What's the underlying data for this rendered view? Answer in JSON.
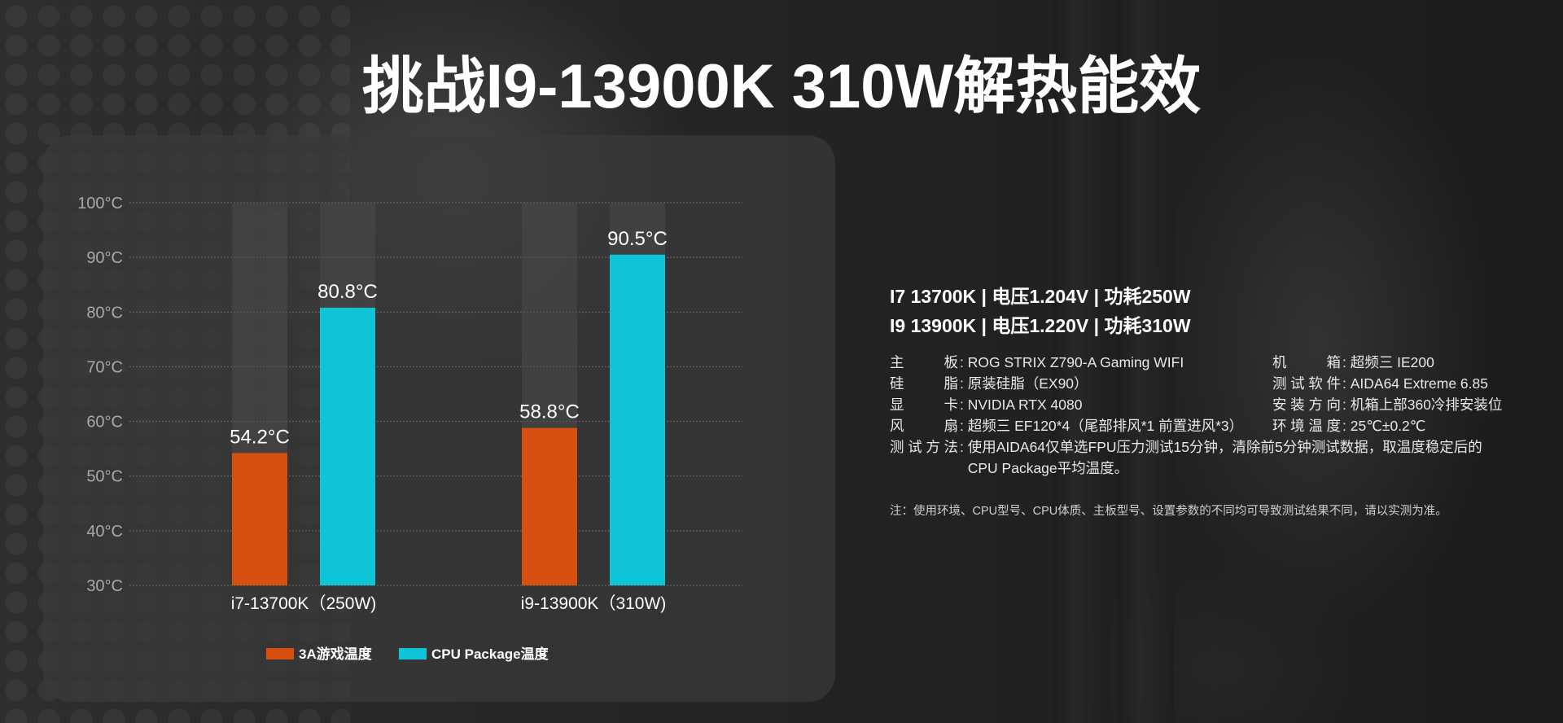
{
  "title": "挑战I9-13900K 310W解热能效",
  "info": {
    "header_lines": [
      "I7 13700K | 电压1.204V  | 功耗250W",
      "I9 13900K | 电压1.220V  | 功耗310W"
    ],
    "specs_left": [
      {
        "label": "主板",
        "value": "ROG STRIX Z790-A Gaming WIFI"
      },
      {
        "label": "硅脂",
        "value": "原装硅脂（EX90）"
      },
      {
        "label": "显卡",
        "value": "NVIDIA RTX 4080"
      },
      {
        "label": "风扇",
        "value": "超频三 EF120*4（尾部排风*1 前置进风*3）"
      }
    ],
    "specs_right": [
      {
        "label": "机箱",
        "value": "超频三 IE200"
      },
      {
        "label": "测试软件",
        "value": "AIDA64 Extreme 6.85"
      },
      {
        "label": "安装方向",
        "value": "机箱上部360冷排安装位"
      },
      {
        "label": "环境温度",
        "value": "25℃±0.2℃"
      }
    ],
    "method_label": "测试方法",
    "method_value": "使用AIDA64仅单选FPU压力测试15分钟，清除前5分钟测试数据，取温度稳定后的CPU Package平均温度。",
    "note": "注：使用环境、CPU型号、CPU体质、主板型号、设置参数的不同均可导致测试结果不同，请以实测为准。"
  },
  "chart_data": {
    "type": "bar",
    "categories": [
      "i7-13700K（250W)",
      "i9-13900K（310W)"
    ],
    "series": [
      {
        "name": "3A游戏温度",
        "values": [
          54.2,
          58.8
        ],
        "labels": [
          "54.2°C",
          "58.8°C"
        ],
        "color": "#d8500f"
      },
      {
        "name": "CPU Package温度",
        "values": [
          80.8,
          90.5
        ],
        "labels": [
          "80.8°C",
          "90.5°C"
        ],
        "color": "#10c4d8"
      }
    ],
    "y_ticks": [
      {
        "value": 100,
        "label": "100°C"
      },
      {
        "value": 90,
        "label": "90°C"
      },
      {
        "value": 80,
        "label": "80°C"
      },
      {
        "value": 70,
        "label": "70°C"
      },
      {
        "value": 60,
        "label": "60°C"
      },
      {
        "value": 50,
        "label": "50°C"
      },
      {
        "value": 40,
        "label": "40°C"
      },
      {
        "value": 30,
        "label": "30°C"
      }
    ],
    "ylim": [
      30,
      100
    ],
    "grid": true,
    "legend_position": "bottom-center",
    "track_color": "#4a4a4a"
  }
}
